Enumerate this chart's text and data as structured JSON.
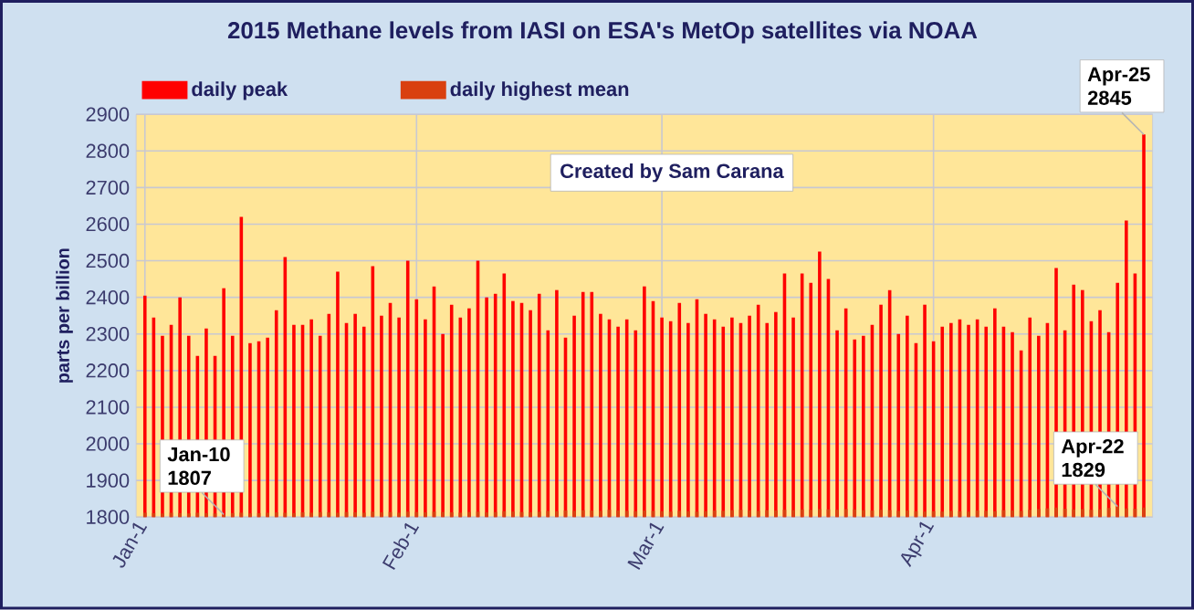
{
  "chart_data": {
    "type": "bar",
    "title": "2015 Methane levels from IASI on ESA's MetOp satellites via NOAA",
    "ylabel": "parts per billion",
    "x": [
      "2015-01-01",
      "2015-01-02",
      "2015-01-03",
      "2015-01-04",
      "2015-01-05",
      "2015-01-06",
      "2015-01-07",
      "2015-01-08",
      "2015-01-09",
      "2015-01-10",
      "2015-01-11",
      "2015-01-12",
      "2015-01-13",
      "2015-01-14",
      "2015-01-15",
      "2015-01-16",
      "2015-01-17",
      "2015-01-18",
      "2015-01-19",
      "2015-01-20",
      "2015-01-21",
      "2015-01-22",
      "2015-01-23",
      "2015-01-24",
      "2015-01-25",
      "2015-01-26",
      "2015-01-27",
      "2015-01-28",
      "2015-01-29",
      "2015-01-30",
      "2015-01-31",
      "2015-02-01",
      "2015-02-02",
      "2015-02-03",
      "2015-02-04",
      "2015-02-05",
      "2015-02-06",
      "2015-02-07",
      "2015-02-08",
      "2015-02-09",
      "2015-02-10",
      "2015-02-11",
      "2015-02-12",
      "2015-02-13",
      "2015-02-14",
      "2015-02-15",
      "2015-02-16",
      "2015-02-17",
      "2015-02-18",
      "2015-02-19",
      "2015-02-20",
      "2015-02-21",
      "2015-02-22",
      "2015-02-23",
      "2015-02-24",
      "2015-02-25",
      "2015-02-26",
      "2015-02-27",
      "2015-02-28",
      "2015-03-01",
      "2015-03-02",
      "2015-03-03",
      "2015-03-04",
      "2015-03-05",
      "2015-03-06",
      "2015-03-07",
      "2015-03-08",
      "2015-03-09",
      "2015-03-10",
      "2015-03-11",
      "2015-03-12",
      "2015-03-13",
      "2015-03-14",
      "2015-03-15",
      "2015-03-16",
      "2015-03-17",
      "2015-03-18",
      "2015-03-19",
      "2015-03-20",
      "2015-03-21",
      "2015-03-22",
      "2015-03-23",
      "2015-03-24",
      "2015-03-25",
      "2015-03-26",
      "2015-03-27",
      "2015-03-28",
      "2015-03-29",
      "2015-03-30",
      "2015-03-31",
      "2015-04-01",
      "2015-04-02",
      "2015-04-03",
      "2015-04-04",
      "2015-04-05",
      "2015-04-06",
      "2015-04-07",
      "2015-04-08",
      "2015-04-09",
      "2015-04-10",
      "2015-04-11",
      "2015-04-12",
      "2015-04-13",
      "2015-04-14",
      "2015-04-15",
      "2015-04-16",
      "2015-04-17",
      "2015-04-18",
      "2015-04-19",
      "2015-04-20",
      "2015-04-21",
      "2015-04-22",
      "2015-04-23",
      "2015-04-24",
      "2015-04-25"
    ],
    "series": [
      {
        "name": "daily peak",
        "color": "#ff0000",
        "values": [
          2405,
          2345,
          2295,
          2325,
          2400,
          2295,
          2240,
          2315,
          2240,
          2425,
          2295,
          2620,
          2275,
          2280,
          2290,
          2365,
          2510,
          2325,
          2325,
          2340,
          2295,
          2355,
          2470,
          2330,
          2355,
          2320,
          2485,
          2350,
          2385,
          2345,
          2500,
          2395,
          2340,
          2430,
          2300,
          2380,
          2345,
          2370,
          2500,
          2400,
          2410,
          2465,
          2390,
          2385,
          2365,
          2410,
          2310,
          2420,
          2290,
          2350,
          2415,
          2415,
          2355,
          2340,
          2320,
          2340,
          2310,
          2430,
          2390,
          2345,
          2335,
          2385,
          2330,
          2395,
          2355,
          2340,
          2320,
          2345,
          2330,
          2350,
          2380,
          2330,
          2360,
          2465,
          2345,
          2465,
          2440,
          2525,
          2450,
          2310,
          2370,
          2285,
          2295,
          2325,
          2380,
          2420,
          2300,
          2350,
          2275,
          2380,
          2280,
          2320,
          2330,
          2340,
          2325,
          2340,
          2320,
          2370,
          2320,
          2305,
          2255,
          2345,
          2295,
          2330,
          2480,
          2310,
          2435,
          2420,
          2335,
          2365,
          2305,
          2440,
          2610,
          2465,
          2845
        ]
      },
      {
        "name": "daily highest mean",
        "color": "#d9400f",
        "values": [
          1812,
          1811,
          1810,
          1812,
          1811,
          1810,
          1812,
          1811,
          1810,
          1807,
          1811,
          1812,
          1810,
          1811,
          1812,
          1813,
          1812,
          1811,
          1813,
          1812,
          1814,
          1813,
          1812,
          1814,
          1813,
          1812,
          1815,
          1813,
          1814,
          1812,
          1815,
          1814,
          1813,
          1815,
          1814,
          1813,
          1812,
          1814,
          1815,
          1813,
          1814,
          1816,
          1815,
          1814,
          1813,
          1815,
          1817,
          1816,
          1818,
          1817,
          1819,
          1818,
          1817,
          1820,
          1818,
          1817,
          1816,
          1818,
          1817,
          1816,
          1815,
          1817,
          1816,
          1815,
          1816,
          1818,
          1817,
          1819,
          1820,
          1818,
          1817,
          1819,
          1818,
          1820,
          1819,
          1821,
          1820,
          1822,
          1821,
          1820,
          1822,
          1821,
          1819,
          1818,
          1820,
          1819,
          1817,
          1818,
          1816,
          1815,
          1816,
          1815,
          1817,
          1816,
          1815,
          1818,
          1817,
          1816,
          1819,
          1818,
          1817,
          1820,
          1822,
          1824,
          1826,
          1823,
          1821,
          1822,
          1820,
          1821,
          1825,
          1829,
          1824,
          1823,
          1826
        ]
      }
    ],
    "xlim": [
      "2014-12-31",
      "2015-04-26"
    ],
    "xticks": [
      {
        "value": "2015-01-01",
        "label": "Jan-1"
      },
      {
        "value": "2015-02-01",
        "label": "Feb-1"
      },
      {
        "value": "2015-03-01",
        "label": "Mar-1"
      },
      {
        "value": "2015-04-01",
        "label": "Apr-1"
      }
    ],
    "ylim": [
      1800,
      2900
    ],
    "yticks": [
      1800,
      1900,
      2000,
      2100,
      2200,
      2300,
      2400,
      2500,
      2600,
      2700,
      2800,
      2900
    ],
    "grid": true,
    "legend": "top left",
    "annotations": [
      {
        "text": "Jan-10 1807",
        "x": "2015-01-10",
        "y": 1807
      },
      {
        "text": "Apr-22 1829",
        "x": "2015-04-22",
        "y": 1829
      },
      {
        "text": "Apr-25 2845",
        "x": "2015-04-25",
        "y": 2845
      },
      "Created by Sam Carana"
    ]
  }
}
